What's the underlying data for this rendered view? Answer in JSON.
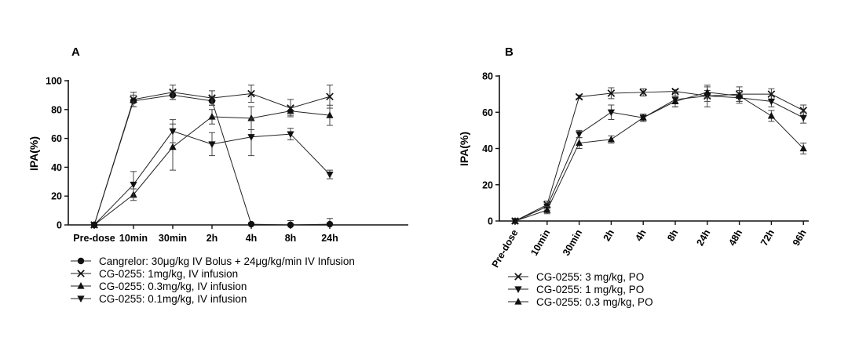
{
  "chart_data": [
    {
      "type": "line",
      "panel_label": "A",
      "ylabel": "IPA(%)",
      "xlabel": "",
      "ylim": [
        0,
        100
      ],
      "yticks": [
        0,
        20,
        40,
        60,
        80,
        100
      ],
      "categories": [
        "Pre-dose",
        "10min",
        "30min",
        "2h",
        "4h",
        "8h",
        "24h"
      ],
      "legend_position": "bottom",
      "series": [
        {
          "name": "Cangrelor: 30μg/kg IV Bolus + 24μg/kg/min IV Infusion",
          "marker": "circle",
          "values": [
            0,
            86,
            90,
            86,
            0.5,
            0,
            0.5
          ],
          "errors": [
            0,
            4,
            3,
            3,
            1,
            3,
            4
          ]
        },
        {
          "name": "CG-0255: 1mg/kg, IV infusion",
          "marker": "x",
          "values": [
            0,
            87,
            92,
            88,
            91,
            81,
            89
          ],
          "errors": [
            0,
            5,
            5,
            5,
            6,
            6,
            8
          ]
        },
        {
          "name": "CG-0255: 0.3mg/kg, IV infusion",
          "marker": "triangle-up",
          "values": [
            0,
            21,
            54,
            75,
            74,
            79,
            76
          ],
          "errors": [
            0,
            4,
            16,
            5,
            8,
            3,
            7
          ]
        },
        {
          "name": "CG-0255: 0.1mg/kg, IV infusion",
          "marker": "triangle-down",
          "values": [
            0,
            28,
            65,
            56,
            61,
            63,
            35
          ],
          "errors": [
            0,
            9,
            8,
            8,
            13,
            4,
            3
          ]
        }
      ]
    },
    {
      "type": "line",
      "panel_label": "B",
      "ylabel": "IPA(%)",
      "xlabel": "",
      "ylim": [
        0,
        80
      ],
      "yticks": [
        0,
        20,
        40,
        60,
        80
      ],
      "categories": [
        "Pre-dose",
        "10min",
        "30min",
        "2h",
        "4h",
        "8h",
        "24h",
        "48h",
        "72h",
        "96h"
      ],
      "legend_position": "bottom",
      "series": [
        {
          "name": "CG-0255: 3 mg/kg, PO",
          "marker": "x",
          "values": [
            0,
            9,
            68.5,
            70.5,
            71,
            71.5,
            69,
            70,
            70,
            61
          ],
          "errors": [
            0,
            2,
            1,
            3,
            2,
            1,
            6,
            4,
            3,
            3
          ]
        },
        {
          "name": "CG-0255: 1 mg/kg, PO",
          "marker": "triangle-down",
          "values": [
            0,
            8,
            48,
            60,
            57,
            67,
            69,
            68,
            66,
            57
          ],
          "errors": [
            0,
            2,
            2,
            4,
            2,
            4,
            3,
            3,
            3,
            3
          ]
        },
        {
          "name": "CG-0255: 0.3 mg/kg, PO",
          "marker": "triangle-up",
          "values": [
            0,
            6,
            43,
            45,
            57,
            66,
            71,
            69,
            58,
            40
          ],
          "errors": [
            0,
            2,
            3,
            2,
            2,
            3,
            3,
            3,
            3,
            3
          ]
        }
      ]
    }
  ]
}
